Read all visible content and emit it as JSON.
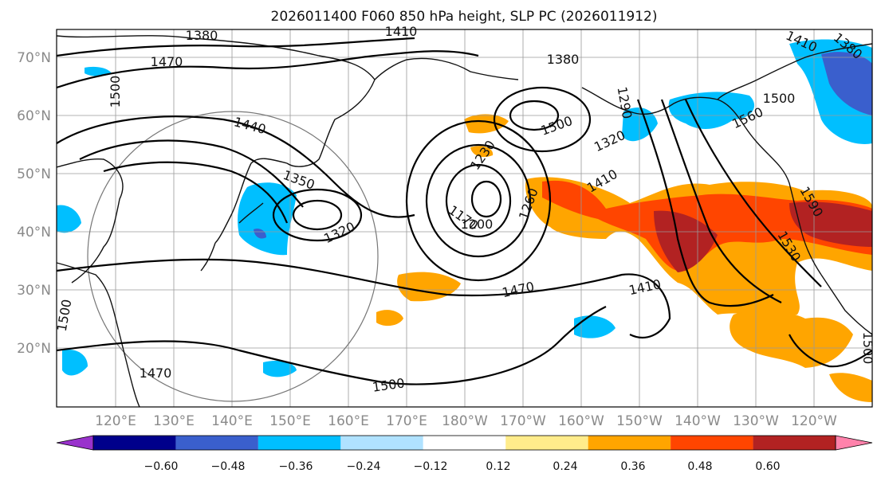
{
  "title": "2026011400 F060 850 hPa height, SLP PC (2026011912)",
  "lat_labels": [
    "70°N",
    "60°N",
    "50°N",
    "40°N",
    "30°N",
    "20°N"
  ],
  "lon_labels": [
    "120°E",
    "130°E",
    "140°E",
    "150°E",
    "160°E",
    "170°E",
    "180°W",
    "170°W",
    "160°W",
    "150°W",
    "140°W",
    "130°W",
    "120°W"
  ],
  "colorbar": {
    "colors": [
      "#9932cc",
      "#00008b",
      "#3a5fcd",
      "#00bfff",
      "#b0e2ff",
      "#ffffff",
      "#ffec8b",
      "#ffa500",
      "#ff4500",
      "#b22222",
      "#ff82ab"
    ],
    "ticks": [
      "−0.60",
      "−0.48",
      "−0.36",
      "−0.24",
      "−0.12",
      "0.12",
      "0.24",
      "0.36",
      "0.48",
      "0.60"
    ]
  },
  "contour_labels": [
    "1380",
    "1410",
    "1470",
    "1500",
    "1440",
    "1350",
    "1320",
    "1380",
    "1290",
    "1500",
    "1320",
    "1230",
    "1170",
    "1200",
    "1260",
    "1410",
    "1470",
    "1410",
    "1500",
    "1560",
    "1590",
    "1530",
    "1410",
    "1380",
    "1500",
    "1470",
    "1500",
    "1500"
  ]
}
